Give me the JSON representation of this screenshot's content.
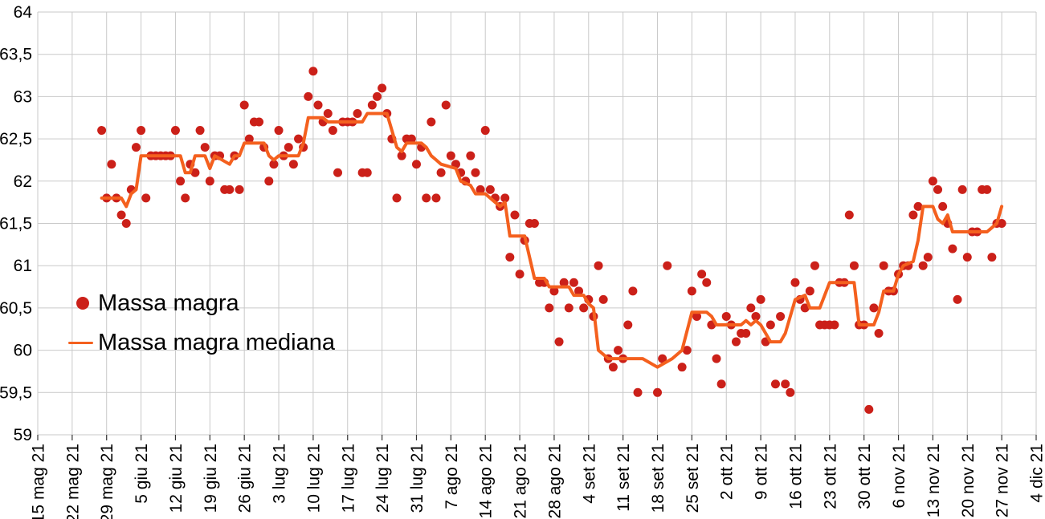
{
  "chart_data": {
    "type": "scatter",
    "title": "",
    "xlabel": "",
    "ylabel": "",
    "grid": true,
    "background": "#ffffff",
    "grid_color": "#c9c9c9",
    "tick_color": "#333333",
    "text_color": "#000000",
    "axis_font_px": 21,
    "y_axis": {
      "min": 59,
      "max": 64,
      "step": 0.5,
      "tick_labels": [
        "64",
        "63,5",
        "63",
        "62,5",
        "62",
        "61,5",
        "61",
        "60,5",
        "60",
        "59,5",
        "59"
      ]
    },
    "x_axis": {
      "days_per_tick": 7,
      "tick_labels": [
        "15 mag 21",
        "22 mag 21",
        "29 mag 21",
        "5 giu 21",
        "12 giu 21",
        "19 giu 21",
        "26 giu 21",
        "3 lug 21",
        "10 lug 21",
        "17 lug 21",
        "24 lug 21",
        "31 lug 21",
        "7 ago 21",
        "14 ago 21",
        "21 ago 21",
        "28 ago 21",
        "4 set 21",
        "11 set 21",
        "18 set 21",
        "25 set 21",
        "2 ott 21",
        "9 ott 21",
        "16 ott 21",
        "23 ott 21",
        "30 ott 21",
        "6 nov 21",
        "13 nov 21",
        "20 nov 21",
        "27 nov 21",
        "4 dic 21"
      ]
    },
    "legend": {
      "position": "inside-left"
    },
    "series": [
      {
        "name": "Massa magra",
        "type": "scatter",
        "color": "#cb2019",
        "marker_radius": 5.5,
        "points": [
          [
            13,
            62.6
          ],
          [
            14,
            61.8
          ],
          [
            15,
            62.2
          ],
          [
            16,
            61.8
          ],
          [
            17,
            61.6
          ],
          [
            18,
            61.5
          ],
          [
            19,
            61.9
          ],
          [
            20,
            62.4
          ],
          [
            21,
            62.6
          ],
          [
            22,
            61.8
          ],
          [
            23,
            62.3
          ],
          [
            24,
            62.3
          ],
          [
            25,
            62.3
          ],
          [
            26,
            62.3
          ],
          [
            27,
            62.3
          ],
          [
            28,
            62.6
          ],
          [
            29,
            62.0
          ],
          [
            30,
            61.8
          ],
          [
            31,
            62.2
          ],
          [
            32,
            62.1
          ],
          [
            33,
            62.6
          ],
          [
            34,
            62.4
          ],
          [
            35,
            62.0
          ],
          [
            36,
            62.3
          ],
          [
            37,
            62.3
          ],
          [
            38,
            61.9
          ],
          [
            39,
            61.9
          ],
          [
            40,
            62.3
          ],
          [
            41,
            61.9
          ],
          [
            42,
            62.9
          ],
          [
            43,
            62.5
          ],
          [
            44,
            62.7
          ],
          [
            45,
            62.7
          ],
          [
            46,
            62.4
          ],
          [
            47,
            62.0
          ],
          [
            48,
            62.2
          ],
          [
            49,
            62.6
          ],
          [
            50,
            62.3
          ],
          [
            51,
            62.4
          ],
          [
            52,
            62.2
          ],
          [
            53,
            62.5
          ],
          [
            54,
            62.4
          ],
          [
            55,
            63.0
          ],
          [
            56,
            63.3
          ],
          [
            57,
            62.9
          ],
          [
            58,
            62.7
          ],
          [
            59,
            62.8
          ],
          [
            60,
            62.6
          ],
          [
            61,
            62.1
          ],
          [
            62,
            62.7
          ],
          [
            63,
            62.7
          ],
          [
            64,
            62.7
          ],
          [
            65,
            62.8
          ],
          [
            66,
            62.1
          ],
          [
            67,
            62.1
          ],
          [
            68,
            62.9
          ],
          [
            69,
            63.0
          ],
          [
            70,
            63.1
          ],
          [
            71,
            62.8
          ],
          [
            72,
            62.5
          ],
          [
            73,
            61.8
          ],
          [
            74,
            62.3
          ],
          [
            75,
            62.5
          ],
          [
            76,
            62.5
          ],
          [
            77,
            62.2
          ],
          [
            78,
            62.4
          ],
          [
            79,
            61.8
          ],
          [
            80,
            62.7
          ],
          [
            81,
            61.8
          ],
          [
            82,
            62.1
          ],
          [
            83,
            62.9
          ],
          [
            84,
            62.3
          ],
          [
            85,
            62.2
          ],
          [
            86,
            62.1
          ],
          [
            87,
            62.0
          ],
          [
            88,
            62.3
          ],
          [
            89,
            62.1
          ],
          [
            90,
            61.9
          ],
          [
            91,
            62.6
          ],
          [
            92,
            61.9
          ],
          [
            93,
            61.8
          ],
          [
            94,
            61.7
          ],
          [
            95,
            61.8
          ],
          [
            96,
            61.1
          ],
          [
            97,
            61.6
          ],
          [
            98,
            60.9
          ],
          [
            99,
            61.3
          ],
          [
            100,
            61.5
          ],
          [
            101,
            61.5
          ],
          [
            102,
            60.8
          ],
          [
            103,
            60.8
          ],
          [
            104,
            60.5
          ],
          [
            105,
            60.7
          ],
          [
            106,
            60.1
          ],
          [
            107,
            60.8
          ],
          [
            108,
            60.5
          ],
          [
            109,
            60.8
          ],
          [
            110,
            60.7
          ],
          [
            111,
            60.5
          ],
          [
            112,
            60.6
          ],
          [
            113,
            60.4
          ],
          [
            114,
            61.0
          ],
          [
            115,
            60.6
          ],
          [
            116,
            59.9
          ],
          [
            117,
            59.8
          ],
          [
            118,
            60.0
          ],
          [
            119,
            59.9
          ],
          [
            120,
            60.3
          ],
          [
            121,
            60.7
          ],
          [
            122,
            59.5
          ],
          [
            126,
            59.5
          ],
          [
            127,
            59.9
          ],
          [
            128,
            61.0
          ],
          [
            131,
            59.8
          ],
          [
            132,
            60.0
          ],
          [
            133,
            60.7
          ],
          [
            134,
            60.4
          ],
          [
            135,
            60.9
          ],
          [
            136,
            60.8
          ],
          [
            137,
            60.3
          ],
          [
            138,
            59.9
          ],
          [
            139,
            59.6
          ],
          [
            140,
            60.4
          ],
          [
            141,
            60.3
          ],
          [
            142,
            60.1
          ],
          [
            143,
            60.2
          ],
          [
            144,
            60.2
          ],
          [
            145,
            60.5
          ],
          [
            146,
            60.4
          ],
          [
            147,
            60.6
          ],
          [
            148,
            60.1
          ],
          [
            149,
            60.3
          ],
          [
            150,
            59.6
          ],
          [
            151,
            60.4
          ],
          [
            152,
            59.6
          ],
          [
            153,
            59.5
          ],
          [
            154,
            60.8
          ],
          [
            155,
            60.6
          ],
          [
            156,
            60.5
          ],
          [
            157,
            60.7
          ],
          [
            158,
            61.0
          ],
          [
            159,
            60.3
          ],
          [
            160,
            60.3
          ],
          [
            161,
            60.3
          ],
          [
            162,
            60.3
          ],
          [
            163,
            60.8
          ],
          [
            164,
            60.8
          ],
          [
            165,
            61.6
          ],
          [
            166,
            61.0
          ],
          [
            167,
            60.3
          ],
          [
            168,
            60.3
          ],
          [
            169,
            59.3
          ],
          [
            170,
            60.5
          ],
          [
            171,
            60.2
          ],
          [
            172,
            61.0
          ],
          [
            173,
            60.7
          ],
          [
            174,
            60.7
          ],
          [
            175,
            60.9
          ],
          [
            176,
            61.0
          ],
          [
            177,
            61.0
          ],
          [
            178,
            61.6
          ],
          [
            179,
            61.7
          ],
          [
            180,
            61.0
          ],
          [
            181,
            61.1
          ],
          [
            182,
            62.0
          ],
          [
            183,
            61.9
          ],
          [
            184,
            61.7
          ],
          [
            185,
            61.5
          ],
          [
            186,
            61.2
          ],
          [
            187,
            60.6
          ],
          [
            188,
            61.9
          ],
          [
            189,
            61.1
          ],
          [
            190,
            61.4
          ],
          [
            191,
            61.4
          ],
          [
            192,
            61.9
          ],
          [
            193,
            61.9
          ],
          [
            194,
            61.1
          ],
          [
            195,
            61.5
          ],
          [
            196,
            61.5
          ]
        ]
      },
      {
        "name": "Massa magra mediana",
        "type": "line",
        "color": "#f4601e",
        "stroke_width": 4,
        "points": [
          [
            13,
            61.8
          ],
          [
            17,
            61.8
          ],
          [
            18,
            61.7
          ],
          [
            19,
            61.85
          ],
          [
            20,
            61.9
          ],
          [
            21,
            62.3
          ],
          [
            29,
            62.3
          ],
          [
            30,
            62.1
          ],
          [
            31,
            62.1
          ],
          [
            32,
            62.3
          ],
          [
            34,
            62.3
          ],
          [
            35,
            62.15
          ],
          [
            36,
            62.3
          ],
          [
            39,
            62.2
          ],
          [
            40,
            62.3
          ],
          [
            41,
            62.3
          ],
          [
            42,
            62.45
          ],
          [
            46,
            62.45
          ],
          [
            47,
            62.3
          ],
          [
            48,
            62.25
          ],
          [
            49,
            62.3
          ],
          [
            53,
            62.3
          ],
          [
            54,
            62.45
          ],
          [
            55,
            62.75
          ],
          [
            58,
            62.75
          ],
          [
            59,
            62.7
          ],
          [
            66,
            62.7
          ],
          [
            67,
            62.8
          ],
          [
            71,
            62.8
          ],
          [
            72,
            62.6
          ],
          [
            73,
            62.4
          ],
          [
            74,
            62.35
          ],
          [
            75,
            62.45
          ],
          [
            78,
            62.45
          ],
          [
            79,
            62.4
          ],
          [
            80,
            62.3
          ],
          [
            81,
            62.25
          ],
          [
            82,
            62.2
          ],
          [
            85,
            62.15
          ],
          [
            86,
            62.0
          ],
          [
            88,
            61.95
          ],
          [
            89,
            61.85
          ],
          [
            91,
            61.85
          ],
          [
            92,
            61.8
          ],
          [
            93,
            61.75
          ],
          [
            94,
            61.7
          ],
          [
            95,
            61.75
          ],
          [
            96,
            61.35
          ],
          [
            99,
            61.35
          ],
          [
            100,
            61.1
          ],
          [
            101,
            60.85
          ],
          [
            103,
            60.85
          ],
          [
            104,
            60.75
          ],
          [
            108,
            60.75
          ],
          [
            109,
            60.65
          ],
          [
            111,
            60.65
          ],
          [
            112,
            60.55
          ],
          [
            113,
            60.5
          ],
          [
            114,
            60.0
          ],
          [
            115,
            59.95
          ],
          [
            116,
            59.9
          ],
          [
            123,
            59.9
          ],
          [
            126,
            59.8
          ],
          [
            129,
            59.9
          ],
          [
            131,
            60.0
          ],
          [
            133,
            60.45
          ],
          [
            136,
            60.45
          ],
          [
            137,
            60.4
          ],
          [
            138,
            60.3
          ],
          [
            143,
            60.3
          ],
          [
            144,
            60.35
          ],
          [
            145,
            60.3
          ],
          [
            146,
            60.35
          ],
          [
            147,
            60.3
          ],
          [
            148,
            60.2
          ],
          [
            149,
            60.1
          ],
          [
            151,
            60.1
          ],
          [
            152,
            60.2
          ],
          [
            154,
            60.6
          ],
          [
            156,
            60.65
          ],
          [
            157,
            60.5
          ],
          [
            159,
            60.5
          ],
          [
            160,
            60.65
          ],
          [
            161,
            60.8
          ],
          [
            166,
            60.8
          ],
          [
            167,
            60.3
          ],
          [
            170,
            60.3
          ],
          [
            171,
            60.45
          ],
          [
            172,
            60.7
          ],
          [
            174,
            60.7
          ],
          [
            175,
            60.9
          ],
          [
            176,
            61.0
          ],
          [
            178,
            61.05
          ],
          [
            179,
            61.3
          ],
          [
            180,
            61.7
          ],
          [
            182,
            61.7
          ],
          [
            183,
            61.55
          ],
          [
            184,
            61.5
          ],
          [
            185,
            61.6
          ],
          [
            186,
            61.4
          ],
          [
            193,
            61.4
          ],
          [
            194,
            61.45
          ],
          [
            195,
            61.5
          ],
          [
            196,
            61.7
          ]
        ]
      }
    ]
  }
}
